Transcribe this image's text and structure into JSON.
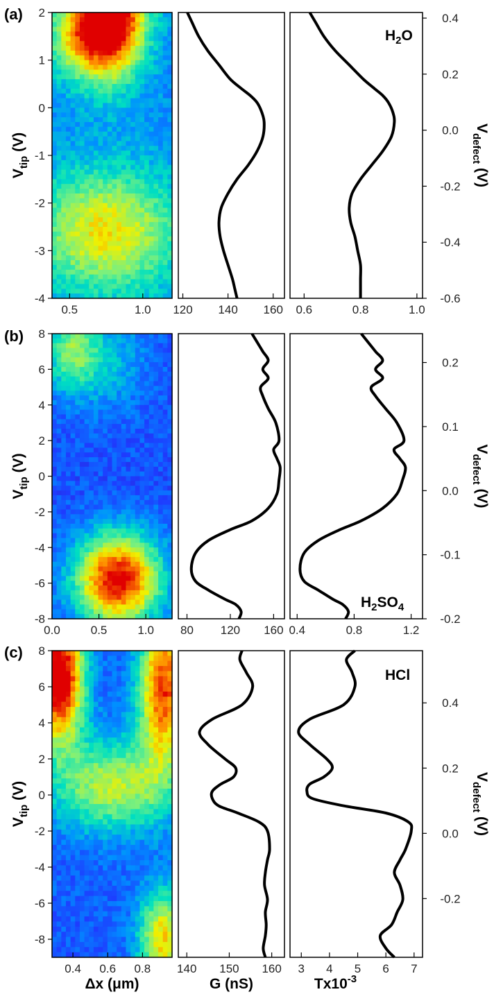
{
  "colors": {
    "curve": "#000000",
    "axis": "#000000",
    "colormap": [
      "#4b0082",
      "#1e3cff",
      "#0090ff",
      "#00e0c0",
      "#7cf07c",
      "#f0f000",
      "#ff8800",
      "#e00000"
    ]
  },
  "chart_data": [
    {
      "type": "figure-panel",
      "panel_label": "(a)",
      "solution_label": {
        "main": "H",
        "sub1": "2",
        "mid": "O",
        "sub2": "",
        "end": ""
      },
      "heatmap": {
        "type": "heatmap",
        "xlabel": "",
        "ylabel_main": "V",
        "ylabel_sub": "tip",
        "ylabel_unit": " (V)",
        "xlim": [
          0.38,
          1.2
        ],
        "ylim": [
          -4,
          2
        ],
        "xticks": [
          0.5,
          1.0
        ],
        "xtick_labels": [
          "0.5",
          "1.0"
        ],
        "yticks": [
          -4,
          -3,
          -2,
          -1,
          0,
          1,
          2
        ],
        "ytick_labels": [
          "-4",
          "-3",
          "-2",
          "-1",
          "0",
          "1",
          "2"
        ],
        "hotspots": [
          {
            "x": 0.78,
            "y": 2.0,
            "sx": 0.16,
            "sy": 0.9,
            "amp": 0.95
          },
          {
            "x": 0.55,
            "y": 1.5,
            "sx": 0.15,
            "sy": 0.6,
            "amp": 0.35
          },
          {
            "x": 0.75,
            "y": -2.6,
            "sx": 0.35,
            "sy": 0.9,
            "amp": 0.45
          }
        ],
        "base": 0.28
      },
      "g_panel": {
        "type": "line",
        "xlabel": "",
        "xlim": [
          118,
          165
        ],
        "xticks": [
          120,
          140,
          160
        ],
        "xtick_labels": [
          "120",
          "140",
          "160"
        ],
        "ylim": [
          -4,
          2
        ],
        "x": [
          122,
          124,
          127,
          131,
          136,
          141,
          146,
          150,
          153,
          155,
          156,
          155.5,
          153,
          149,
          144,
          140,
          137,
          136,
          136.5,
          138,
          140,
          142,
          143,
          144
        ],
        "y": [
          2.0,
          1.8,
          1.5,
          1.2,
          0.9,
          0.6,
          0.4,
          0.25,
          0.1,
          -0.1,
          -0.3,
          -0.6,
          -0.9,
          -1.2,
          -1.5,
          -1.8,
          -2.1,
          -2.4,
          -2.7,
          -3.0,
          -3.3,
          -3.6,
          -3.8,
          -4.0
        ]
      },
      "t_panel": {
        "type": "line",
        "xlabel": "",
        "xlim": [
          0.55,
          1.02
        ],
        "xticks": [
          0.6,
          0.8,
          1.0
        ],
        "xtick_labels": [
          "0.6",
          "0.8",
          "1.0"
        ],
        "ylim": [
          -4,
          2
        ],
        "x": [
          0.62,
          0.64,
          0.67,
          0.71,
          0.76,
          0.81,
          0.85,
          0.88,
          0.9,
          0.915,
          0.92,
          0.91,
          0.88,
          0.84,
          0.8,
          0.77,
          0.76,
          0.765,
          0.78,
          0.79,
          0.8,
          0.8,
          0.8,
          0.8
        ],
        "y": [
          2.0,
          1.8,
          1.5,
          1.2,
          0.9,
          0.6,
          0.4,
          0.25,
          0.1,
          -0.1,
          -0.3,
          -0.6,
          -0.9,
          -1.2,
          -1.5,
          -1.8,
          -2.1,
          -2.4,
          -2.7,
          -3.0,
          -3.3,
          -3.6,
          -3.8,
          -4.0
        ]
      },
      "right_axis": {
        "label_main": "V",
        "label_sub": "defect",
        "label_unit": " (V)",
        "ylim": [
          -0.6,
          0.42
        ],
        "yticks": [
          -0.6,
          -0.4,
          -0.2,
          0.0,
          0.2,
          0.4
        ],
        "ytick_labels": [
          "-0.6",
          "-0.4",
          "-0.2",
          "0.0",
          "0.2",
          "0.4"
        ]
      }
    },
    {
      "type": "figure-panel",
      "panel_label": "(b)",
      "solution_label": {
        "main": "H",
        "sub1": "2",
        "mid": "SO",
        "sub2": "4",
        "end": ""
      },
      "heatmap": {
        "type": "heatmap",
        "xlabel": "",
        "ylabel_main": "V",
        "ylabel_sub": "tip",
        "ylabel_unit": " (V)",
        "xlim": [
          0.0,
          1.28
        ],
        "ylim": [
          -8,
          8
        ],
        "xticks": [
          0.0,
          0.5,
          1.0
        ],
        "xtick_labels": [
          "0.0",
          "0.5",
          "1.0"
        ],
        "yticks": [
          -8,
          -6,
          -4,
          -2,
          0,
          2,
          4,
          6,
          8
        ],
        "ytick_labels": [
          "-8",
          "-6",
          "-4",
          "-2",
          "0",
          "2",
          "4",
          "6",
          "8"
        ],
        "hotspots": [
          {
            "x": 0.7,
            "y": -5.8,
            "sx": 0.32,
            "sy": 1.8,
            "amp": 0.85
          },
          {
            "x": 0.2,
            "y": 7.0,
            "sx": 0.2,
            "sy": 1.6,
            "amp": 0.35
          },
          {
            "x": 0.6,
            "y": 6.5,
            "sx": 0.3,
            "sy": 2.0,
            "amp": 0.18
          }
        ],
        "base": 0.18
      },
      "g_panel": {
        "type": "line",
        "xlabel": "",
        "xlim": [
          72,
          170
        ],
        "xticks": [
          80,
          120,
          160
        ],
        "xtick_labels": [
          "80",
          "120",
          "160"
        ],
        "ylim": [
          -8,
          8
        ],
        "x": [
          140,
          145,
          150,
          155,
          150,
          155,
          148,
          150,
          155,
          162,
          165,
          160,
          163,
          166,
          165,
          163,
          155,
          140,
          120,
          100,
          88,
          84,
          88,
          100,
          115,
          125,
          130,
          128
        ],
        "y": [
          8.0,
          7.5,
          7.0,
          6.5,
          6.0,
          5.5,
          5.0,
          4.5,
          3.8,
          3.0,
          2.0,
          1.5,
          1.0,
          0.5,
          -0.2,
          -1.0,
          -1.8,
          -2.5,
          -3.0,
          -3.6,
          -4.3,
          -5.2,
          -5.9,
          -6.4,
          -6.9,
          -7.2,
          -7.6,
          -8.0
        ]
      },
      "t_panel": {
        "type": "line",
        "xlabel": "",
        "xlim": [
          0.35,
          1.28
        ],
        "xticks": [
          0.4,
          0.8,
          1.2
        ],
        "xtick_labels": [
          "0.4",
          "0.8",
          "1.2"
        ],
        "ylim": [
          -8,
          8
        ],
        "x": [
          0.85,
          0.9,
          0.95,
          1.0,
          0.95,
          1.0,
          0.92,
          0.95,
          1.02,
          1.1,
          1.15,
          1.08,
          1.12,
          1.16,
          1.14,
          1.1,
          1.0,
          0.85,
          0.7,
          0.55,
          0.45,
          0.42,
          0.45,
          0.55,
          0.65,
          0.72,
          0.76,
          0.74
        ],
        "y": [
          8.0,
          7.5,
          7.0,
          6.5,
          6.0,
          5.5,
          5.0,
          4.5,
          3.8,
          3.0,
          2.0,
          1.5,
          1.0,
          0.5,
          -0.2,
          -1.0,
          -1.8,
          -2.5,
          -3.0,
          -3.6,
          -4.3,
          -5.2,
          -5.9,
          -6.4,
          -6.9,
          -7.2,
          -7.6,
          -8.0
        ]
      },
      "right_axis": {
        "label_main": "V",
        "label_sub": "defect",
        "label_unit": " (V)",
        "ylim": [
          -0.2,
          0.245
        ],
        "yticks": [
          -0.2,
          -0.1,
          0.0,
          0.1,
          0.2
        ],
        "ytick_labels": [
          "-0.2",
          "-0.1",
          "0.0",
          "0.1",
          "0.2"
        ]
      }
    },
    {
      "type": "figure-panel",
      "panel_label": "(c)",
      "solution_label": {
        "main": "HCl",
        "sub1": "",
        "mid": "",
        "sub2": "",
        "end": ""
      },
      "heatmap": {
        "type": "heatmap",
        "xlabel_main": "Δx (μm)",
        "ylabel_main": "V",
        "ylabel_sub": "tip",
        "ylabel_unit": " (V)",
        "xlim": [
          0.28,
          0.97
        ],
        "ylim": [
          -9,
          8
        ],
        "xticks": [
          0.4,
          0.6,
          0.8
        ],
        "xtick_labels": [
          "0.4",
          "0.6",
          "0.8"
        ],
        "yticks": [
          -8,
          -6,
          -4,
          -2,
          0,
          2,
          4,
          6,
          8
        ],
        "ytick_labels": [
          "-8",
          "-6",
          "-4",
          "-2",
          "0",
          "2",
          "4",
          "6",
          "8"
        ],
        "hotspots": [
          {
            "x": 0.32,
            "y": 6.5,
            "sx": 0.1,
            "sy": 2.5,
            "amp": 0.95
          },
          {
            "x": 0.92,
            "y": 6.0,
            "sx": 0.1,
            "sy": 3.0,
            "amp": 0.75
          },
          {
            "x": 0.63,
            "y": 0.5,
            "sx": 0.25,
            "sy": 1.8,
            "amp": 0.45
          },
          {
            "x": 0.92,
            "y": -8.0,
            "sx": 0.1,
            "sy": 2.0,
            "amp": 0.55
          }
        ],
        "base": 0.2
      },
      "g_panel": {
        "type": "line",
        "xlabel": "G (nS)",
        "xlim": [
          138,
          163
        ],
        "xticks": [
          140,
          150,
          160
        ],
        "xtick_labels": [
          "140",
          "150",
          "160"
        ],
        "ylim": [
          -9,
          8
        ],
        "x": [
          153,
          152.5,
          154,
          155.5,
          153,
          146,
          143,
          145,
          149,
          151.5,
          151,
          148,
          146,
          146,
          147.5,
          152,
          157,
          159,
          159.5,
          159,
          158.5,
          158.3,
          159,
          158.5,
          158.7,
          158.5,
          158,
          158.5
        ],
        "y": [
          8.0,
          7.5,
          6.8,
          6.0,
          5.0,
          4.2,
          3.5,
          2.8,
          2.0,
          1.5,
          1.0,
          0.6,
          0.2,
          -0.2,
          -0.6,
          -1.0,
          -1.5,
          -2.0,
          -3.0,
          -3.6,
          -4.3,
          -5.0,
          -5.8,
          -6.5,
          -7.2,
          -7.8,
          -8.5,
          -9.0
        ]
      },
      "t_panel": {
        "type": "line",
        "xlabel_main": "Tx10",
        "xlabel_sup": "-3",
        "xlim": [
          2.6,
          7.3
        ],
        "xticks": [
          3,
          4,
          5,
          6,
          7
        ],
        "xtick_labels": [
          "3",
          "4",
          "5",
          "6",
          "7"
        ],
        "ylim": [
          -9,
          8
        ],
        "x": [
          4.9,
          4.6,
          4.8,
          4.9,
          4.5,
          3.3,
          2.9,
          3.3,
          3.9,
          4.1,
          3.8,
          3.3,
          3.2,
          3.4,
          4.5,
          6.0,
          6.8,
          6.9,
          6.7,
          6.5,
          6.3,
          6.5,
          6.6,
          6.4,
          6.2,
          5.8,
          6.0,
          6.3
        ],
        "y": [
          8.0,
          7.5,
          6.8,
          6.0,
          5.0,
          4.2,
          3.5,
          2.8,
          2.0,
          1.5,
          1.0,
          0.6,
          0.2,
          -0.2,
          -0.6,
          -1.0,
          -1.5,
          -2.0,
          -3.0,
          -3.6,
          -4.3,
          -5.0,
          -5.8,
          -6.5,
          -7.2,
          -7.8,
          -8.5,
          -9.0
        ]
      },
      "right_axis": {
        "label_main": "V",
        "label_sub": "defect",
        "label_unit": " (V)",
        "ylim": [
          -0.38,
          0.56
        ],
        "yticks": [
          -0.2,
          0.0,
          0.2,
          0.4
        ],
        "ytick_labels": [
          "-0.2",
          "0.0",
          "0.2",
          "0.4"
        ]
      }
    }
  ]
}
